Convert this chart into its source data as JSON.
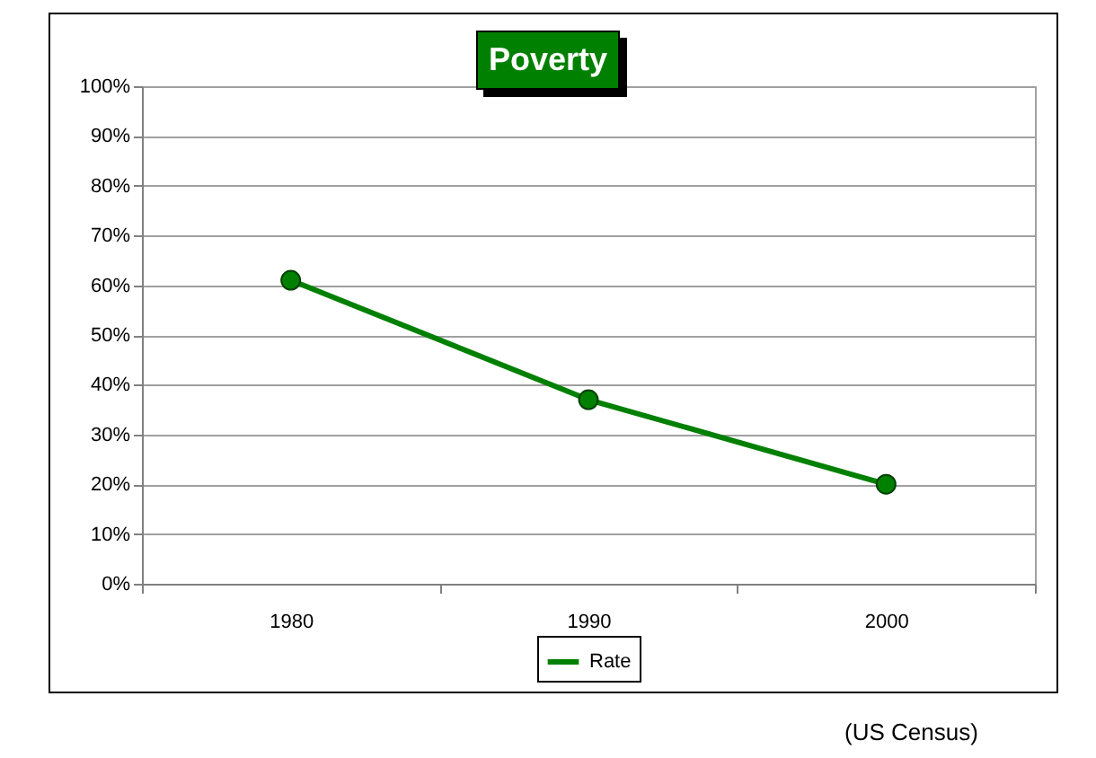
{
  "chart_data": {
    "type": "line",
    "title": "Poverty",
    "categories": [
      "1980",
      "1990",
      "2000"
    ],
    "series": [
      {
        "name": "Rate",
        "color": "#008000",
        "values": [
          61,
          37,
          20
        ]
      }
    ],
    "ylim": [
      0,
      100
    ],
    "yticks": [
      {
        "value": 0,
        "label": "0%"
      },
      {
        "value": 10,
        "label": "10%"
      },
      {
        "value": 20,
        "label": "20%"
      },
      {
        "value": 30,
        "label": "30%"
      },
      {
        "value": 40,
        "label": "40%"
      },
      {
        "value": 50,
        "label": "50%"
      },
      {
        "value": 60,
        "label": "60%"
      },
      {
        "value": 70,
        "label": "70%"
      },
      {
        "value": 80,
        "label": "80%"
      },
      {
        "value": 90,
        "label": "90%"
      },
      {
        "value": 100,
        "label": "100%"
      }
    ],
    "grid": "y",
    "legend": "bottom",
    "marker": "circle",
    "line_style": "solid",
    "annotations": [
      "(US Census)"
    ]
  }
}
